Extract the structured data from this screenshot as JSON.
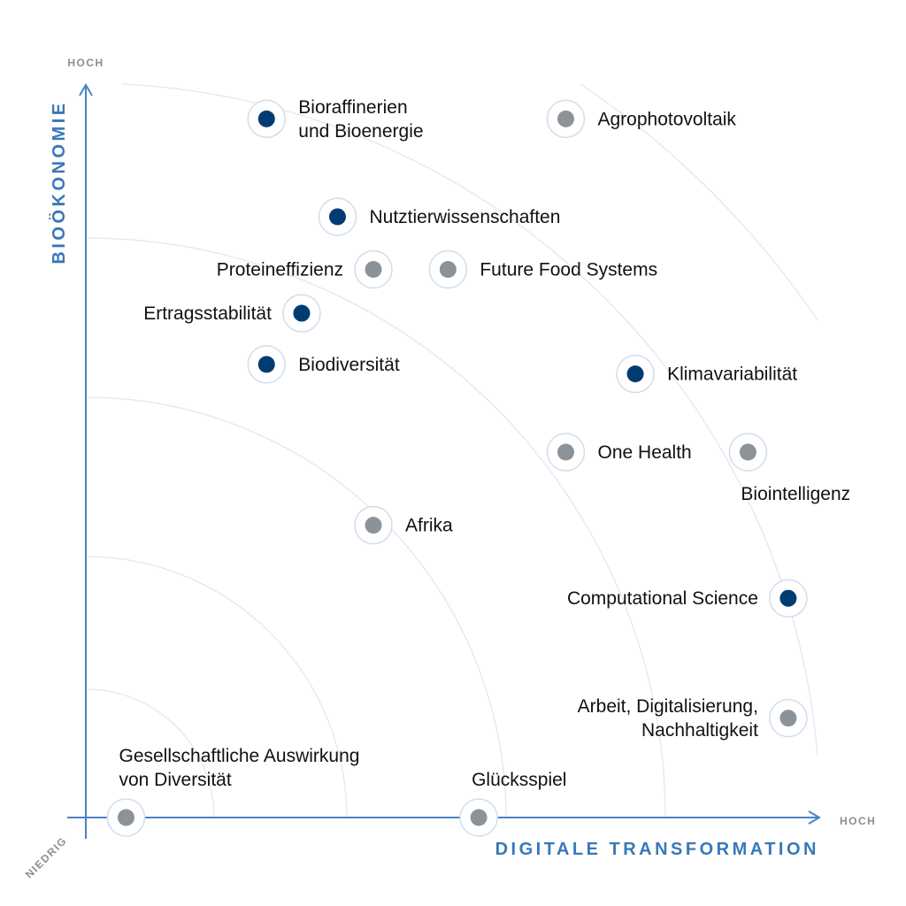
{
  "chart_data": {
    "type": "scatter",
    "title": "",
    "xlabel": "DIGITALE TRANSFORMATION",
    "ylabel": "BIOÖKONOMIE",
    "x_high_label": "HOCH",
    "y_high_label": "HOCH",
    "origin_label": "NIEDRIG",
    "xlim": [
      0,
      100
    ],
    "ylim": [
      0,
      100
    ],
    "grid": "concentric arcs centered at origin",
    "colors": {
      "primary": "#003c71",
      "secondary": "#8c9398",
      "axis": "#4a83c4",
      "axis_text": "#3a78b8",
      "tick_text": "#8a8f93",
      "arc": "#dfe8f3"
    },
    "points": [
      {
        "label": [
          "Bioraffinerien",
          "und Bioenergie"
        ],
        "x": 24.7,
        "y": 95.6,
        "group": "primary",
        "label_side": "right"
      },
      {
        "label": [
          "Agrophotovoltaik"
        ],
        "x": 65.6,
        "y": 95.6,
        "group": "secondary",
        "label_side": "right"
      },
      {
        "label": [
          "Nutztierwissenschaften"
        ],
        "x": 34.4,
        "y": 82.2,
        "group": "primary",
        "label_side": "right"
      },
      {
        "label": [
          "Proteineffizienz"
        ],
        "x": 39.3,
        "y": 75.0,
        "group": "secondary",
        "label_side": "left"
      },
      {
        "label": [
          "Future Food Systems"
        ],
        "x": 49.5,
        "y": 75.0,
        "group": "secondary",
        "label_side": "right"
      },
      {
        "label": [
          "Ertragsstabilität"
        ],
        "x": 29.5,
        "y": 69.0,
        "group": "primary",
        "label_side": "left"
      },
      {
        "label": [
          "Biodiversität"
        ],
        "x": 24.7,
        "y": 62.0,
        "group": "primary",
        "label_side": "right"
      },
      {
        "label": [
          "Klimavariabilität"
        ],
        "x": 75.1,
        "y": 60.7,
        "group": "primary",
        "label_side": "right"
      },
      {
        "label": [
          "One Health"
        ],
        "x": 65.6,
        "y": 50.0,
        "group": "secondary",
        "label_side": "right"
      },
      {
        "label": [
          "Biointelligenz"
        ],
        "x": 90.5,
        "y": 50.0,
        "group": "secondary",
        "label_side": "below"
      },
      {
        "label": [
          "Afrika"
        ],
        "x": 39.3,
        "y": 40.0,
        "group": "secondary",
        "label_side": "right"
      },
      {
        "label": [
          "Computational Science"
        ],
        "x": 96.0,
        "y": 30.0,
        "group": "primary",
        "label_side": "left"
      },
      {
        "label": [
          "Arbeit, Digitalisierung,",
          "Nachhaltigkeit"
        ],
        "x": 96.0,
        "y": 13.6,
        "group": "secondary",
        "label_side": "left"
      },
      {
        "label": [
          "Gesellschaftliche Auswirkung",
          "von Diversität"
        ],
        "x": 5.5,
        "y": 0.0,
        "group": "secondary",
        "label_side": "above"
      },
      {
        "label": [
          "Glücksspiel"
        ],
        "x": 53.7,
        "y": 0.0,
        "group": "secondary",
        "label_side": "above"
      }
    ]
  }
}
